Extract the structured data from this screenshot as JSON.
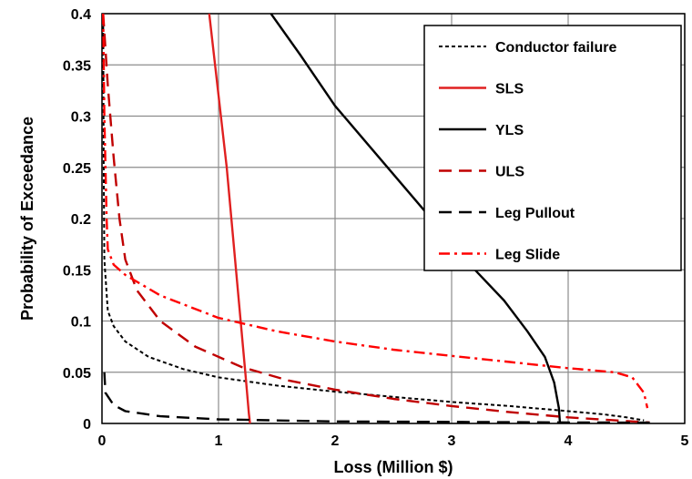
{
  "chart_data": {
    "type": "line",
    "title": "",
    "xlabel": "Loss (Million $)",
    "ylabel": "Probability of Exceedance",
    "xlim": [
      0,
      5
    ],
    "ylim": [
      0,
      0.4
    ],
    "x_ticks": [
      "0",
      "1",
      "2",
      "3",
      "4",
      "5"
    ],
    "y_ticks": [
      "0",
      "0.05",
      "0.1",
      "0.15",
      "0.2",
      "0.25",
      "0.3",
      "0.35",
      "0.4"
    ],
    "grid": true,
    "legend_position": "top-right",
    "series": [
      {
        "name": "Conductor failure",
        "color": "#000000",
        "dash": "short-dash",
        "points": [
          [
            0.01,
            0.4
          ],
          [
            0.015,
            0.25
          ],
          [
            0.02,
            0.16
          ],
          [
            0.05,
            0.11
          ],
          [
            0.1,
            0.095
          ],
          [
            0.2,
            0.08
          ],
          [
            0.4,
            0.065
          ],
          [
            0.7,
            0.053
          ],
          [
            1.0,
            0.045
          ],
          [
            1.5,
            0.037
          ],
          [
            2.0,
            0.031
          ],
          [
            2.5,
            0.026
          ],
          [
            3.0,
            0.021
          ],
          [
            3.5,
            0.017
          ],
          [
            4.0,
            0.012
          ],
          [
            4.3,
            0.009
          ],
          [
            4.5,
            0.006
          ],
          [
            4.65,
            0.003
          ]
        ]
      },
      {
        "name": "SLS",
        "color": "#e02020",
        "dash": "solid",
        "points": [
          [
            0.92,
            0.4
          ],
          [
            0.97,
            0.35
          ],
          [
            1.02,
            0.3
          ],
          [
            1.07,
            0.25
          ],
          [
            1.11,
            0.2
          ],
          [
            1.15,
            0.15
          ],
          [
            1.19,
            0.1
          ],
          [
            1.23,
            0.05
          ],
          [
            1.26,
            0.01
          ],
          [
            1.27,
            0.0
          ]
        ]
      },
      {
        "name": "YLS",
        "color": "#000000",
        "dash": "solid",
        "points": [
          [
            1.45,
            0.4
          ],
          [
            1.7,
            0.36
          ],
          [
            2.0,
            0.31
          ],
          [
            2.3,
            0.27
          ],
          [
            2.6,
            0.23
          ],
          [
            2.9,
            0.19
          ],
          [
            3.2,
            0.15
          ],
          [
            3.45,
            0.12
          ],
          [
            3.65,
            0.09
          ],
          [
            3.8,
            0.065
          ],
          [
            3.88,
            0.04
          ],
          [
            3.92,
            0.015
          ],
          [
            3.93,
            0.0
          ]
        ]
      },
      {
        "name": "ULS",
        "color": "#c00000",
        "dash": "long-dash",
        "points": [
          [
            0.01,
            0.4
          ],
          [
            0.05,
            0.33
          ],
          [
            0.1,
            0.26
          ],
          [
            0.15,
            0.2
          ],
          [
            0.2,
            0.16
          ],
          [
            0.3,
            0.13
          ],
          [
            0.5,
            0.1
          ],
          [
            0.8,
            0.075
          ],
          [
            1.2,
            0.055
          ],
          [
            1.6,
            0.042
          ],
          [
            2.0,
            0.033
          ],
          [
            2.5,
            0.024
          ],
          [
            3.0,
            0.017
          ],
          [
            3.5,
            0.011
          ],
          [
            4.0,
            0.006
          ],
          [
            4.4,
            0.003
          ],
          [
            4.7,
            0.001
          ]
        ]
      },
      {
        "name": "Leg Pullout",
        "color": "#000000",
        "dash": "long-dash",
        "points": [
          [
            0.02,
            0.05
          ],
          [
            0.03,
            0.03
          ],
          [
            0.1,
            0.018
          ],
          [
            0.2,
            0.012
          ],
          [
            0.5,
            0.007
          ],
          [
            1.0,
            0.004
          ],
          [
            2.0,
            0.002
          ],
          [
            3.0,
            0.0015
          ],
          [
            4.0,
            0.001
          ],
          [
            4.7,
            0.0008
          ]
        ]
      },
      {
        "name": "Leg Slide",
        "color": "#ff0000",
        "dash": "dash-dot",
        "points": [
          [
            0.01,
            0.4
          ],
          [
            0.02,
            0.3
          ],
          [
            0.04,
            0.2
          ],
          [
            0.05,
            0.17
          ],
          [
            0.1,
            0.155
          ],
          [
            0.2,
            0.145
          ],
          [
            0.5,
            0.125
          ],
          [
            1.0,
            0.103
          ],
          [
            1.5,
            0.09
          ],
          [
            2.0,
            0.08
          ],
          [
            2.5,
            0.072
          ],
          [
            3.0,
            0.066
          ],
          [
            3.5,
            0.06
          ],
          [
            4.0,
            0.054
          ],
          [
            4.4,
            0.05
          ],
          [
            4.55,
            0.045
          ],
          [
            4.65,
            0.03
          ],
          [
            4.68,
            0.015
          ]
        ]
      }
    ]
  }
}
